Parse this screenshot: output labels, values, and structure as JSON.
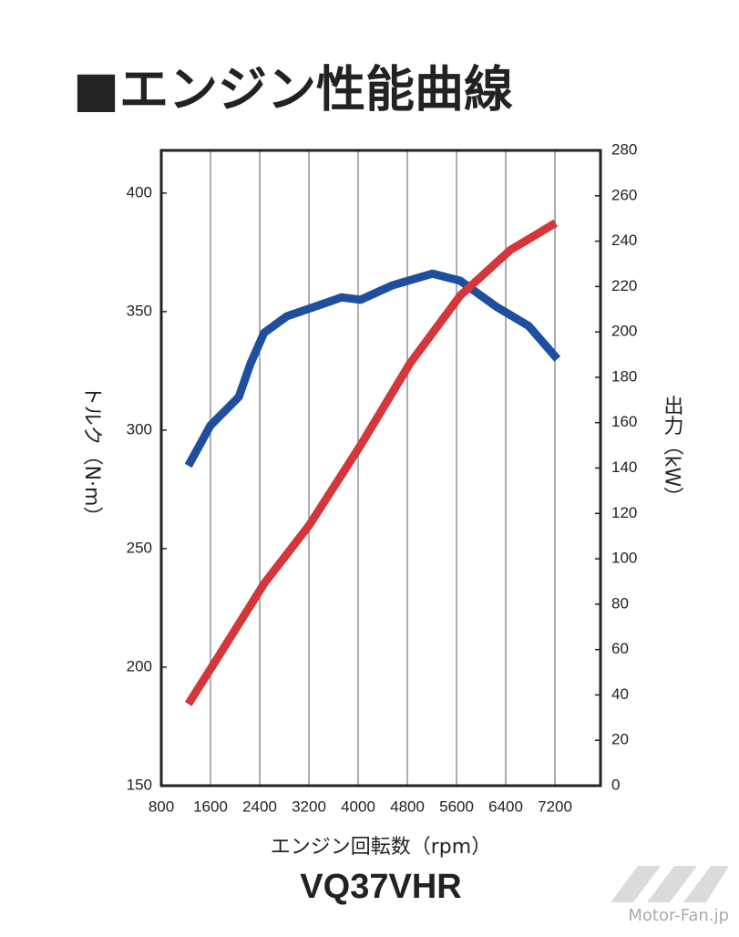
{
  "chart_data": {
    "type": "line",
    "title": "■エンジン性能曲線",
    "x_label": "エンジン回転数（rpm）",
    "y_label": "トルク（N·m）",
    "y2_label": "出力（kW）",
    "subtitle": "VQ37VHR",
    "watermark": "Motor-Fan.jp",
    "xlim": [
      800,
      7940
    ],
    "xticks": [
      800,
      1600,
      2400,
      3200,
      4000,
      4800,
      5600,
      6400,
      7200
    ],
    "ylim": [
      150,
      418
    ],
    "yticks": [
      150,
      200,
      250,
      300,
      350,
      400
    ],
    "y2lim": [
      0,
      280
    ],
    "y2ticks": [
      0,
      20,
      40,
      60,
      80,
      100,
      120,
      140,
      160,
      180,
      200,
      220,
      240,
      260,
      280
    ],
    "grid": true,
    "series": [
      {
        "name": "トルク",
        "color": "#1e4f9e",
        "x": [
          1240,
          1600,
          2060,
          2250,
          2470,
          2840,
          3290,
          3730,
          4040,
          4550,
          5210,
          5660,
          6250,
          6770,
          7240
        ],
        "values": [
          285,
          302,
          314,
          328,
          341,
          348,
          352,
          356,
          355,
          361,
          366,
          363,
          352,
          344,
          330
        ]
      },
      {
        "name": "出力",
        "color": "#d4363a",
        "axis": "y2",
        "x": [
          1240,
          1730,
          2470,
          3210,
          4040,
          4840,
          5660,
          6470,
          7210
        ],
        "values": [
          36,
          57,
          89,
          115,
          150,
          186,
          216,
          236,
          248
        ]
      }
    ]
  }
}
